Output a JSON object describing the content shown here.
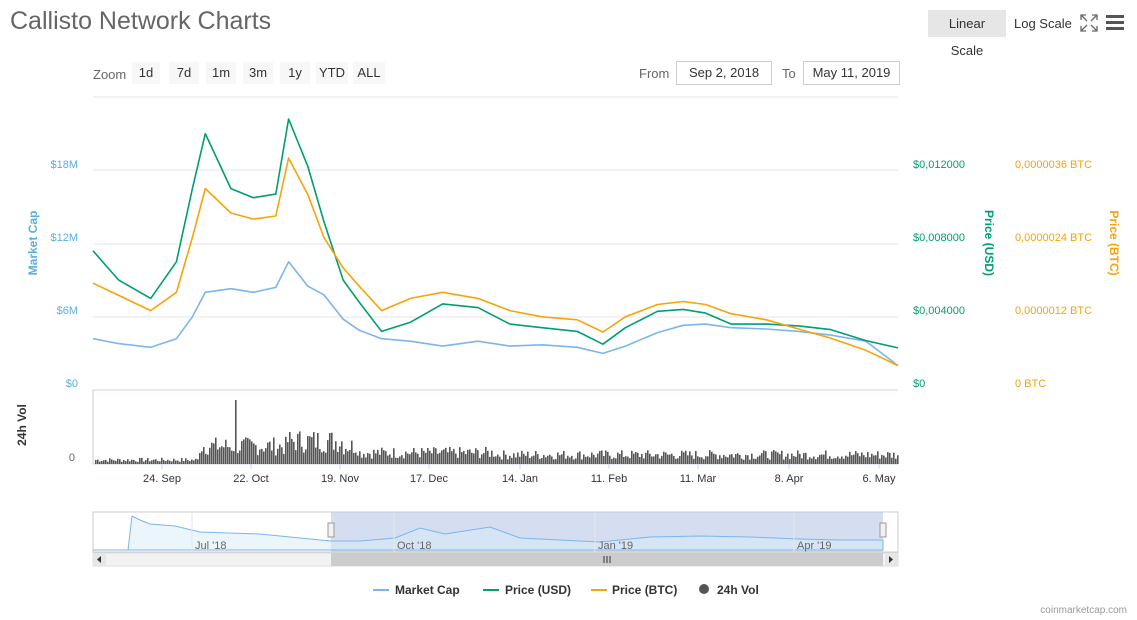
{
  "header": {
    "title": "Callisto Network Charts",
    "linear_scale": "Linear Scale",
    "log_scale": "Log Scale"
  },
  "zoom": {
    "label": "Zoom",
    "buttons": [
      "1d",
      "7d",
      "1m",
      "3m",
      "1y",
      "YTD",
      "ALL"
    ]
  },
  "range": {
    "from_label": "From",
    "from_value": "Sep 2, 2018",
    "to_label": "To",
    "to_value": "May 11, 2019"
  },
  "footer": "coinmarketcap.com",
  "colors": {
    "market_cap": "#7cb5ec",
    "price_usd": "#009e73",
    "price_btc": "#f7a30a",
    "volume": "#555555",
    "axis_mc": "#56b0e3"
  },
  "chart_data": {
    "type": "line",
    "date_range": [
      "2018-09-02",
      "2019-05-11"
    ],
    "x_tick_labels": [
      "24. Sep",
      "22. Oct",
      "19. Nov",
      "17. Dec",
      "14. Jan",
      "11. Feb",
      "11. Mar",
      "8. Apr",
      "6. May"
    ],
    "y_left": {
      "label": "Market Cap",
      "ticks": [
        "$0",
        "$6M",
        "$12M",
        "$18M"
      ],
      "range": [
        0,
        24000000
      ]
    },
    "y_right_usd": {
      "label": "Price (USD)",
      "ticks": [
        "$0",
        "$0,004000",
        "$0,008000",
        "$0,012000"
      ],
      "range": [
        0,
        0.016
      ]
    },
    "y_right_btc": {
      "label": "Price (BTC)",
      "ticks": [
        "0 BTC",
        "0,0000012 BTC",
        "0,0000024 BTC",
        "0,0000036 BTC"
      ],
      "range": [
        0,
        4.8e-06
      ]
    },
    "volume_axis": {
      "label": "24h Vol",
      "ticks": [
        "0"
      ]
    },
    "navigator_labels": [
      "Jul '18",
      "Oct '18",
      "Jan '19",
      "Apr '19"
    ],
    "legend": [
      "Market Cap",
      "Price (USD)",
      "Price (BTC)",
      "24h Vol"
    ],
    "legend_position": "bottom-center",
    "series": [
      {
        "name": "Market Cap",
        "x": [
          "2018-09-02",
          "2018-09-10",
          "2018-09-20",
          "2018-09-28",
          "2018-10-03",
          "2018-10-07",
          "2018-10-15",
          "2018-10-22",
          "2018-10-29",
          "2018-11-02",
          "2018-11-08",
          "2018-11-13",
          "2018-11-19",
          "2018-11-24",
          "2018-12-01",
          "2018-12-10",
          "2018-12-20",
          "2018-12-31",
          "2019-01-10",
          "2019-01-20",
          "2019-01-31",
          "2019-02-08",
          "2019-02-15",
          "2019-02-25",
          "2019-03-05",
          "2019-03-12",
          "2019-03-20",
          "2019-03-31",
          "2019-04-10",
          "2019-04-20",
          "2019-05-01",
          "2019-05-11"
        ],
        "values": [
          4.2,
          3.8,
          3.5,
          4.2,
          6.0,
          8.0,
          8.3,
          8.0,
          8.4,
          10.5,
          8.5,
          7.8,
          5.8,
          4.9,
          4.2,
          4.0,
          3.6,
          4.0,
          3.6,
          3.7,
          3.5,
          3.0,
          3.6,
          4.7,
          5.3,
          5.4,
          5.1,
          5.0,
          4.8,
          4.5,
          4.0,
          2.0
        ]
      },
      {
        "name": "Price (USD)",
        "x": [
          "2018-09-02",
          "2018-09-10",
          "2018-09-20",
          "2018-09-28",
          "2018-10-03",
          "2018-10-07",
          "2018-10-15",
          "2018-10-22",
          "2018-10-29",
          "2018-11-02",
          "2018-11-08",
          "2018-11-13",
          "2018-11-19",
          "2018-11-24",
          "2018-12-01",
          "2018-12-10",
          "2018-12-20",
          "2018-12-31",
          "2019-01-10",
          "2019-01-20",
          "2019-01-31",
          "2019-02-08",
          "2019-02-15",
          "2019-02-25",
          "2019-03-05",
          "2019-03-12",
          "2019-03-20",
          "2019-03-31",
          "2019-04-10",
          "2019-04-20",
          "2019-05-01",
          "2019-05-11"
        ],
        "values": [
          0.0076,
          0.006,
          0.005,
          0.007,
          0.011,
          0.014,
          0.011,
          0.0105,
          0.0107,
          0.0148,
          0.0122,
          0.0092,
          0.006,
          0.0048,
          0.0032,
          0.0037,
          0.0047,
          0.0045,
          0.0036,
          0.0034,
          0.0032,
          0.0025,
          0.0034,
          0.0043,
          0.0044,
          0.0042,
          0.0036,
          0.0036,
          0.0035,
          0.0033,
          0.0027,
          0.0023
        ]
      },
      {
        "name": "Price (BTC)",
        "x": [
          "2018-09-02",
          "2018-09-10",
          "2018-09-20",
          "2018-09-28",
          "2018-10-03",
          "2018-10-07",
          "2018-10-15",
          "2018-10-22",
          "2018-10-29",
          "2018-11-02",
          "2018-11-08",
          "2018-11-13",
          "2018-11-19",
          "2018-11-24",
          "2018-12-01",
          "2018-12-10",
          "2018-12-20",
          "2018-12-31",
          "2019-01-10",
          "2019-01-20",
          "2019-01-31",
          "2019-02-08",
          "2019-02-15",
          "2019-02-25",
          "2019-03-05",
          "2019-03-12",
          "2019-03-20",
          "2019-03-31",
          "2019-04-10",
          "2019-04-20",
          "2019-05-01",
          "2019-05-11"
        ],
        "values": [
          1.75e-06,
          1.55e-06,
          1.3e-06,
          1.6e-06,
          2.5e-06,
          3.3e-06,
          2.9e-06,
          2.8e-06,
          2.85e-06,
          3.8e-06,
          3.2e-06,
          2.5e-06,
          2e-06,
          1.7e-06,
          1.3e-06,
          1.5e-06,
          1.6e-06,
          1.5e-06,
          1.3e-06,
          1.2e-06,
          1.15e-06,
          9.5e-07,
          1.2e-06,
          1.4e-06,
          1.45e-06,
          1.4e-06,
          1.25e-06,
          1.15e-06,
          1e-06,
          8.5e-07,
          6.5e-07,
          4e-07
        ]
      }
    ]
  }
}
